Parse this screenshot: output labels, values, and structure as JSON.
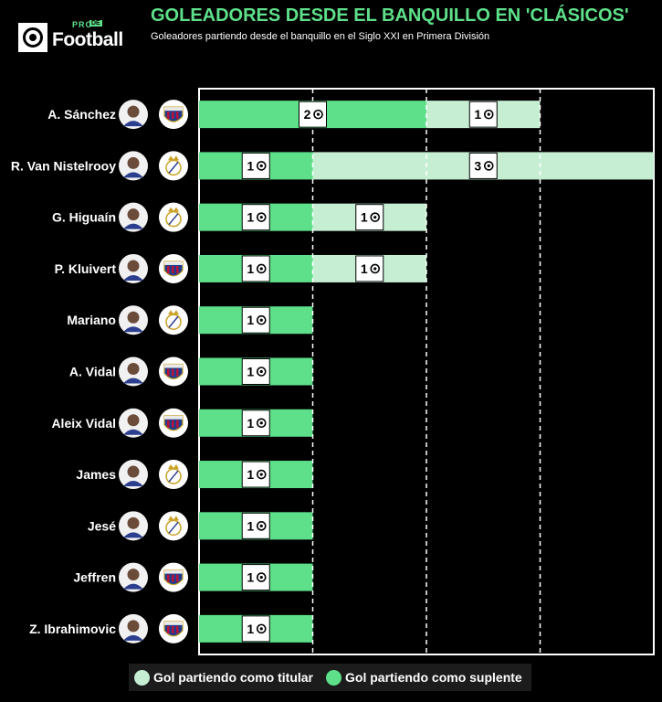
{
  "header": {
    "title": "GOLEADORES DESDE EL BANQUILLO EN 'CLÁSICOS'",
    "subtitle": "Goleadores partiendo desde el banquillo en el Siglo XXI en Primera División"
  },
  "logo": {
    "pro": "PRO",
    "de": "DE",
    "text": "Football"
  },
  "colors": {
    "background": "#000000",
    "suplente": "#5ee08a",
    "titular": "#c6eed3",
    "accent": "#5ee08a",
    "axis": "#ffffff",
    "gridline": "#ffffff",
    "realmadrid_gold": "#c9a227",
    "barcelona_blue": "#1f3d8c",
    "barcelona_red": "#b8123b"
  },
  "legend": {
    "titular": "Gol partiendo como titular",
    "suplente": "Gol partiendo como suplente"
  },
  "chart_data": {
    "type": "bar",
    "orientation": "horizontal",
    "stacked": true,
    "title": "GOLEADORES DESDE EL BANQUILLO EN 'CLÁSICOS'",
    "subtitle": "Goleadores partiendo desde el banquillo en el Siglo XXI en Primera División",
    "xlim": [
      0,
      4
    ],
    "grid_x": [
      1,
      2,
      3
    ],
    "categories": [
      "A. Sánchez",
      "R. Van Nistelrooy",
      "G. Higuaín",
      "P. Kluivert",
      "Mariano",
      "A. Vidal",
      "Aleix Vidal",
      "James",
      "Jesé",
      "Jeffren",
      "Z. Ibrahimovic"
    ],
    "clubs": [
      "barcelona",
      "realmadrid",
      "realmadrid",
      "barcelona",
      "realmadrid",
      "barcelona",
      "barcelona",
      "realmadrid",
      "realmadrid",
      "barcelona",
      "barcelona"
    ],
    "series": [
      {
        "name": "Gol partiendo como suplente",
        "key": "suplente",
        "values": [
          2,
          1,
          1,
          1,
          1,
          1,
          1,
          1,
          1,
          1,
          1
        ]
      },
      {
        "name": "Gol partiendo como titular",
        "key": "titular",
        "values": [
          1,
          3,
          1,
          1,
          0,
          0,
          0,
          0,
          0,
          0,
          0
        ]
      }
    ],
    "legend": [
      "Gol partiendo como titular",
      "Gol partiendo como suplente"
    ]
  }
}
